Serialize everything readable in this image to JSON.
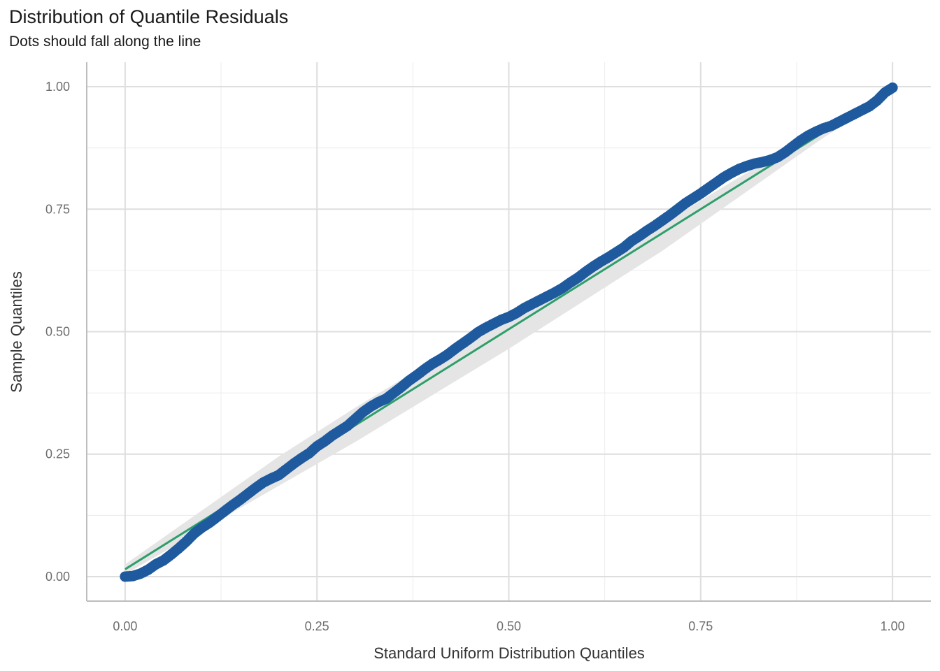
{
  "chart_data": {
    "type": "scatter",
    "title": "Distribution of Quantile Residuals",
    "subtitle": "Dots should fall along the line",
    "xlabel": "Standard Uniform Distribution Quantiles",
    "ylabel": "Sample Quantiles",
    "xlim": [
      -0.05,
      1.05
    ],
    "ylim": [
      -0.05,
      1.05
    ],
    "x_ticks": [
      0.0,
      0.25,
      0.5,
      0.75,
      1.0
    ],
    "x_tick_labels": [
      "0.00",
      "0.25",
      "0.50",
      "0.75",
      "1.00"
    ],
    "y_ticks": [
      0.0,
      0.25,
      0.5,
      0.75,
      1.0
    ],
    "y_tick_labels": [
      "0.00",
      "0.25",
      "0.50",
      "0.75",
      "1.00"
    ],
    "grid": true,
    "reference_line": {
      "x": [
        0.0,
        1.0
      ],
      "y": [
        0.015,
        0.995
      ],
      "color": "#2e9e6b"
    },
    "confidence_band": {
      "x": [
        0.0,
        0.1,
        0.2,
        0.3,
        0.4,
        0.5,
        0.6,
        0.7,
        0.8,
        0.9,
        1.0
      ],
      "lower": [
        0.005,
        0.095,
        0.185,
        0.275,
        0.37,
        0.465,
        0.565,
        0.665,
        0.775,
        0.885,
        0.99
      ],
      "upper": [
        0.025,
        0.135,
        0.245,
        0.345,
        0.44,
        0.535,
        0.625,
        0.72,
        0.815,
        0.905,
        1.0
      ],
      "color": "#e5e5e5"
    },
    "series": [
      {
        "color": "#1f5a9e",
        "x": [
          0.0,
          0.01,
          0.02,
          0.03,
          0.04,
          0.05,
          0.06,
          0.07,
          0.08,
          0.09,
          0.1,
          0.11,
          0.12,
          0.13,
          0.14,
          0.15,
          0.16,
          0.17,
          0.18,
          0.19,
          0.2,
          0.21,
          0.22,
          0.23,
          0.24,
          0.25,
          0.26,
          0.27,
          0.28,
          0.29,
          0.3,
          0.31,
          0.32,
          0.33,
          0.34,
          0.35,
          0.36,
          0.37,
          0.38,
          0.39,
          0.4,
          0.41,
          0.42,
          0.43,
          0.44,
          0.45,
          0.46,
          0.47,
          0.48,
          0.49,
          0.5,
          0.51,
          0.52,
          0.53,
          0.54,
          0.55,
          0.56,
          0.57,
          0.58,
          0.59,
          0.6,
          0.61,
          0.62,
          0.63,
          0.64,
          0.65,
          0.66,
          0.67,
          0.68,
          0.69,
          0.7,
          0.71,
          0.72,
          0.73,
          0.74,
          0.75,
          0.76,
          0.77,
          0.78,
          0.79,
          0.8,
          0.81,
          0.82,
          0.83,
          0.84,
          0.85,
          0.86,
          0.87,
          0.88,
          0.89,
          0.9,
          0.91,
          0.92,
          0.93,
          0.94,
          0.95,
          0.96,
          0.97,
          0.98,
          0.99,
          1.0
        ],
        "y": [
          0.0,
          0.001,
          0.006,
          0.014,
          0.025,
          0.033,
          0.045,
          0.058,
          0.072,
          0.088,
          0.1,
          0.11,
          0.122,
          0.134,
          0.146,
          0.157,
          0.169,
          0.181,
          0.192,
          0.2,
          0.207,
          0.219,
          0.231,
          0.242,
          0.252,
          0.266,
          0.276,
          0.288,
          0.298,
          0.308,
          0.322,
          0.336,
          0.347,
          0.356,
          0.363,
          0.375,
          0.387,
          0.4,
          0.411,
          0.423,
          0.434,
          0.443,
          0.453,
          0.465,
          0.476,
          0.487,
          0.499,
          0.508,
          0.516,
          0.524,
          0.53,
          0.538,
          0.548,
          0.556,
          0.564,
          0.572,
          0.58,
          0.589,
          0.6,
          0.61,
          0.622,
          0.633,
          0.643,
          0.652,
          0.662,
          0.672,
          0.685,
          0.695,
          0.706,
          0.716,
          0.727,
          0.738,
          0.75,
          0.762,
          0.772,
          0.782,
          0.793,
          0.804,
          0.815,
          0.824,
          0.832,
          0.838,
          0.843,
          0.846,
          0.85,
          0.856,
          0.866,
          0.878,
          0.89,
          0.9,
          0.908,
          0.915,
          0.92,
          0.928,
          0.936,
          0.944,
          0.952,
          0.96,
          0.972,
          0.988,
          0.998
        ]
      }
    ]
  }
}
